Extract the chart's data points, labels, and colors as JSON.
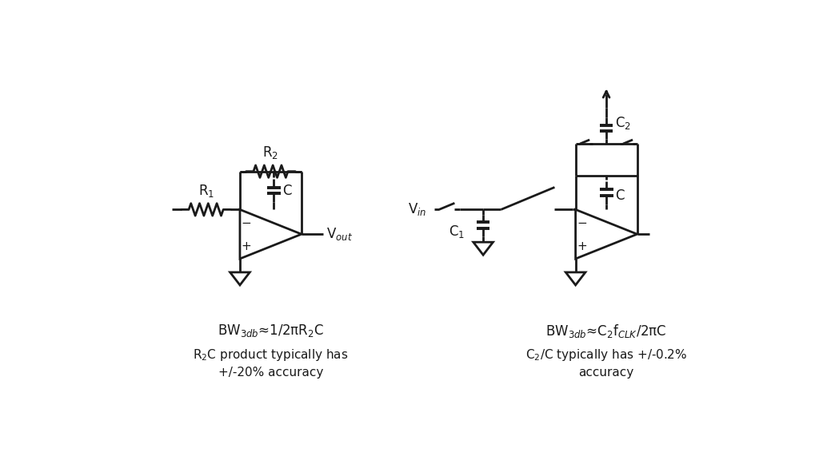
{
  "bg_color": "#ffffff",
  "line_color": "#1a1a1a",
  "text_color": "#1a1a1a",
  "lw": 2.0,
  "fig_width": 10.24,
  "fig_height": 5.76,
  "formula1": "BW$_{3db}$≈1/2πR$_2$C",
  "formula2_line1": "R$_2$C product typically has",
  "formula2_line2": "+/-20% accuracy",
  "formula3": "BW$_{3db}$≈C$_2$f$_{CLK}$/2πC",
  "formula4_line1": "C$_2$/C typically has +/-0.2%",
  "formula4_line2": "accuracy"
}
